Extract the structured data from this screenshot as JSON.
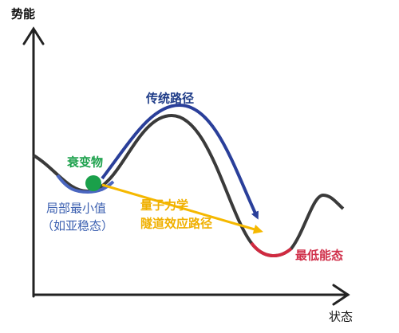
{
  "axes": {
    "y_label": "势能",
    "x_label": "状态"
  },
  "labels": {
    "classical_path": "传统路径",
    "decay_particle": "衰变物",
    "local_minimum": [
      "局部最小值",
      "（如亚稳态）"
    ],
    "tunneling_path": [
      "量子力学",
      "隧道效应路径"
    ],
    "ground_state": "最低能态"
  }
}
